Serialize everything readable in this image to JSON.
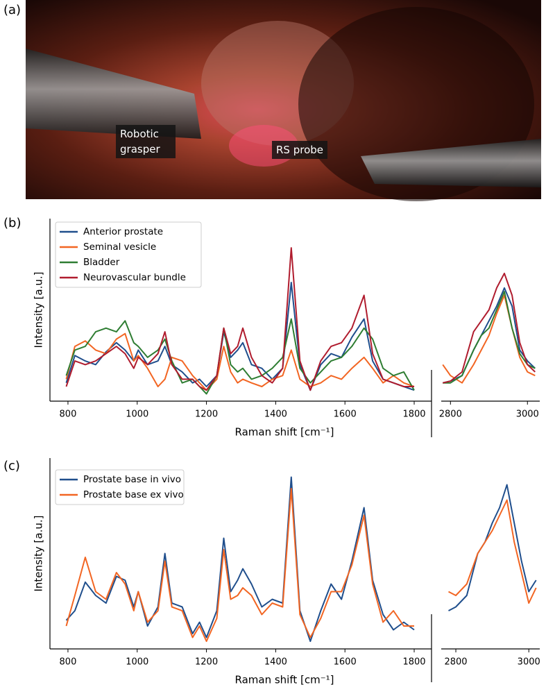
{
  "panels": [
    {
      "label": "(a)"
    },
    {
      "label": "(b)"
    },
    {
      "label": "(c)"
    }
  ],
  "photo": {
    "annotations": [
      "Robotic grasper",
      "RS probe"
    ]
  },
  "chart_data": [
    {
      "type": "line",
      "xlabel": "Raman shift [cm⁻¹]",
      "ylabel": "Intensity [a.u.]",
      "legend": "upper left",
      "x": [
        795,
        820,
        850,
        880,
        910,
        940,
        965,
        990,
        1003,
        1030,
        1060,
        1080,
        1100,
        1130,
        1160,
        1180,
        1200,
        1230,
        1250,
        1270,
        1290,
        1305,
        1330,
        1360,
        1390,
        1420,
        1445,
        1470,
        1500,
        1530,
        1560,
        1590,
        1620,
        1655,
        1680,
        1710,
        1740,
        1770,
        1800,
        2780,
        2800,
        2830,
        2860,
        2880,
        2900,
        2920,
        2940,
        2960,
        2980,
        3000,
        3020
      ],
      "x_segments": [
        {
          "xlim": [
            748,
            1816
          ],
          "xticks": [
            800,
            1000,
            1200,
            1400,
            1600,
            1800
          ]
        },
        {
          "xlim": [
            2776,
            3032
          ],
          "xticks": [
            2800,
            3000
          ]
        }
      ],
      "ylim": [
        0,
        100
      ],
      "series": [
        {
          "name": "Anterior prostate",
          "color": "#1f4e8c",
          "values": [
            10,
            25,
            22,
            20,
            27,
            32,
            28,
            22,
            28,
            20,
            22,
            30,
            20,
            16,
            10,
            12,
            8,
            14,
            38,
            24,
            28,
            32,
            20,
            18,
            12,
            18,
            65,
            20,
            6,
            20,
            26,
            24,
            35,
            45,
            22,
            12,
            10,
            8,
            6,
            10,
            11,
            14,
            28,
            36,
            44,
            52,
            62,
            52,
            28,
            22,
            18
          ]
        },
        {
          "name": "Seminal vesicle",
          "color": "#f26522",
          "values": [
            12,
            30,
            33,
            28,
            26,
            34,
            37,
            22,
            25,
            18,
            8,
            12,
            24,
            22,
            14,
            10,
            6,
            12,
            30,
            16,
            10,
            12,
            10,
            8,
            12,
            14,
            28,
            12,
            8,
            10,
            14,
            12,
            18,
            24,
            18,
            10,
            14,
            10,
            8,
            20,
            14,
            10,
            20,
            28,
            36,
            48,
            58,
            40,
            24,
            16,
            14
          ]
        },
        {
          "name": "Bladder",
          "color": "#2e7d32",
          "values": [
            14,
            28,
            30,
            38,
            40,
            38,
            44,
            32,
            30,
            24,
            28,
            34,
            22,
            10,
            12,
            8,
            4,
            14,
            40,
            20,
            16,
            18,
            12,
            14,
            18,
            24,
            45,
            18,
            10,
            16,
            22,
            24,
            30,
            40,
            34,
            18,
            14,
            16,
            6,
            10,
            10,
            14,
            28,
            36,
            40,
            50,
            60,
            40,
            26,
            20,
            18
          ]
        },
        {
          "name": "Neurovascular bundle",
          "color": "#b01c2e",
          "values": [
            8,
            22,
            20,
            22,
            26,
            30,
            26,
            18,
            24,
            20,
            26,
            38,
            20,
            12,
            12,
            8,
            6,
            14,
            40,
            26,
            30,
            40,
            24,
            14,
            10,
            18,
            84,
            22,
            6,
            22,
            30,
            32,
            40,
            58,
            26,
            12,
            10,
            8,
            8,
            10,
            11,
            16,
            38,
            44,
            50,
            62,
            70,
            58,
            32,
            20,
            16
          ]
        }
      ]
    },
    {
      "type": "line",
      "xlabel": "Raman shift [cm⁻¹]",
      "ylabel": "Intensity [a.u.]",
      "legend": "upper left",
      "x": [
        795,
        820,
        850,
        880,
        910,
        940,
        965,
        990,
        1003,
        1030,
        1060,
        1080,
        1100,
        1130,
        1160,
        1180,
        1200,
        1230,
        1250,
        1270,
        1290,
        1305,
        1330,
        1360,
        1390,
        1420,
        1445,
        1470,
        1500,
        1530,
        1560,
        1590,
        1620,
        1655,
        1680,
        1710,
        1740,
        1770,
        1800,
        2780,
        2800,
        2830,
        2860,
        2880,
        2900,
        2920,
        2940,
        2960,
        2980,
        3000,
        3020
      ],
      "x_segments": [
        {
          "xlim": [
            748,
            1816
          ],
          "xticks": [
            800,
            1000,
            1200,
            1400,
            1600,
            1800
          ]
        },
        {
          "xlim": [
            2760,
            3030
          ],
          "xticks": [
            2800,
            3000
          ]
        }
      ],
      "ylim": [
        0,
        100
      ],
      "series": [
        {
          "name": "Prostate base in vivo",
          "color": "#1f4e8c",
          "values": [
            15,
            20,
            35,
            28,
            24,
            38,
            36,
            22,
            30,
            12,
            22,
            50,
            24,
            22,
            8,
            14,
            6,
            20,
            58,
            30,
            36,
            42,
            34,
            22,
            26,
            24,
            90,
            20,
            4,
            20,
            34,
            26,
            46,
            74,
            36,
            18,
            10,
            14,
            10,
            20,
            22,
            28,
            50,
            56,
            66,
            74,
            86,
            66,
            46,
            30,
            36
          ]
        },
        {
          "name": "Prostate base ex vivo",
          "color": "#f26522",
          "values": [
            12,
            28,
            48,
            30,
            26,
            40,
            34,
            20,
            30,
            14,
            20,
            46,
            22,
            20,
            6,
            12,
            4,
            16,
            52,
            26,
            28,
            32,
            28,
            18,
            24,
            22,
            84,
            18,
            6,
            16,
            30,
            30,
            44,
            70,
            34,
            14,
            20,
            12,
            12,
            30,
            28,
            34,
            50,
            56,
            62,
            70,
            78,
            56,
            40,
            24,
            32
          ]
        }
      ]
    }
  ]
}
